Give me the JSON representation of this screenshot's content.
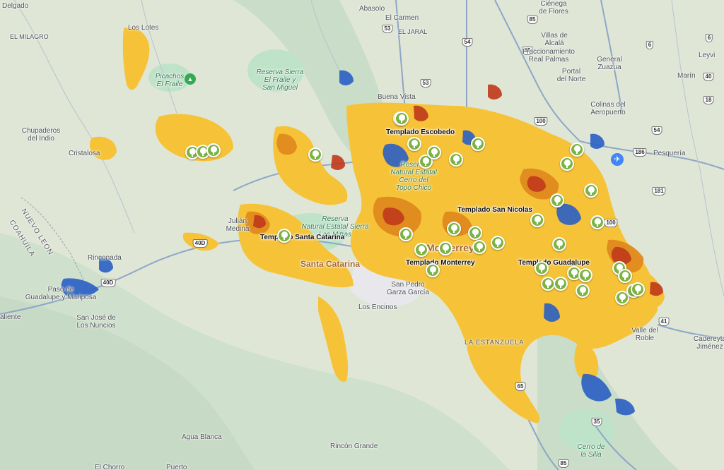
{
  "map": {
    "colors": {
      "base": "#dfe6d6",
      "mountain": "#c9ddc8",
      "park": "#bfe3c9",
      "urban_core": "#e8e8ec",
      "heat_yellow": "#f6c338",
      "heat_orange": "#e08a1e",
      "heat_red": "#c0391b",
      "cool_blue": "#2a5fc4",
      "highway": "#8ea6c8",
      "pin": "#7cb342"
    },
    "places": [
      {
        "id": "delgado",
        "text": "Delgado"
      },
      {
        "id": "el-milagro",
        "text": "EL MILAGRO"
      },
      {
        "id": "los-lotes",
        "text": "Los Lotes"
      },
      {
        "id": "abasolo",
        "text": "Abasolo"
      },
      {
        "id": "el-carmen",
        "text": "El Carmen"
      },
      {
        "id": "el-jaral",
        "text": "EL JARAL"
      },
      {
        "id": "cienega",
        "text": "Ciénega\nde Flores"
      },
      {
        "id": "villas-alcala",
        "text": "Villas de\nAlcalá"
      },
      {
        "id": "fracc-real-palmas",
        "text": "Fraccionamiento\nReal Palmas"
      },
      {
        "id": "general-zuazua",
        "text": "General\nZuazua"
      },
      {
        "id": "portal-norte",
        "text": "Portal\ndel Norte"
      },
      {
        "id": "marin",
        "text": "Marín"
      },
      {
        "id": "leyvi",
        "text": "Leyvi"
      },
      {
        "id": "buena-vista",
        "text": "Buena Vista"
      },
      {
        "id": "colinas-aeropuerto",
        "text": "Colinas del\nAeropuerto"
      },
      {
        "id": "pesqueria",
        "text": "Pesquería"
      },
      {
        "id": "chupaderos",
        "text": "Chupaderos\ndel Indio"
      },
      {
        "id": "cristalosa",
        "text": "Cristalosa"
      },
      {
        "id": "julian-medina",
        "text": "Julián\nMedina"
      },
      {
        "id": "rinconada",
        "text": "Rinconada"
      },
      {
        "id": "paso-guadalupe",
        "text": "Paso de\nGuadalupe y Mariposa"
      },
      {
        "id": "caliente",
        "text": "aliente"
      },
      {
        "id": "san-jose-nuncios",
        "text": "San José de\nLos Nuncios"
      },
      {
        "id": "san-pedro",
        "text": "San Pedro\nGarza García"
      },
      {
        "id": "los-encinos",
        "text": "Los Encinos"
      },
      {
        "id": "la-estanzuela",
        "text": "LA ESTANZUELA"
      },
      {
        "id": "valle-roble",
        "text": "Valle del\nRoble"
      },
      {
        "id": "cadereyta",
        "text": "Cadereyta\nJiménez"
      },
      {
        "id": "agua-blanca",
        "text": "Agua Blanca"
      },
      {
        "id": "rincon-grande",
        "text": "Rincón Grande"
      },
      {
        "id": "puerto",
        "text": "Puerto"
      },
      {
        "id": "el-chorro",
        "text": "El Chorro"
      },
      {
        "id": "santa-catarina",
        "text": "Santa Catarina"
      },
      {
        "id": "monterrey",
        "text": "Monterrey"
      }
    ],
    "green_labels": [
      {
        "id": "picachos",
        "text": "Picachos\nEl Fraile"
      },
      {
        "id": "reserva-fraile",
        "text": "Reserva Sierra\nEl Fraile y\nSan Miguel"
      },
      {
        "id": "reserva-sierra-mitras",
        "text": "Reserva\nNatural Estatal Sierra\nLas Mitras"
      },
      {
        "id": "reserva-cerro-topo",
        "text": "Reserva\nNatural Estatal\nCerro del\nTopo Chico"
      },
      {
        "id": "cerro-silla",
        "text": "Cerro de\nla Silla"
      }
    ],
    "state_labels": [
      {
        "id": "nuevo-leon",
        "text": "NUEVO LEON"
      },
      {
        "id": "coahuila",
        "text": "COAHUILA"
      }
    ],
    "templado_labels": [
      {
        "id": "escobedo",
        "text": "Templado Escobedo"
      },
      {
        "id": "san-nicolas",
        "text": "Templado San Nicolas"
      },
      {
        "id": "santa-catarina",
        "text": "Templado Santa Catarina"
      },
      {
        "id": "monterrey",
        "text": "Templado Monterrey"
      },
      {
        "id": "guadalupe",
        "text": "Templado Guadalupe"
      }
    ],
    "highway_shields": [
      "53",
      "54",
      "85",
      "85",
      "53",
      "100",
      "186",
      "181",
      "100",
      "40D",
      "40D",
      "41",
      "35",
      "85",
      "65",
      "6",
      "6",
      "18",
      "40",
      "54"
    ],
    "pin_icon": "tree-icon",
    "park_icon": "mountain-icon",
    "airport_icon": "airplane-icon"
  }
}
